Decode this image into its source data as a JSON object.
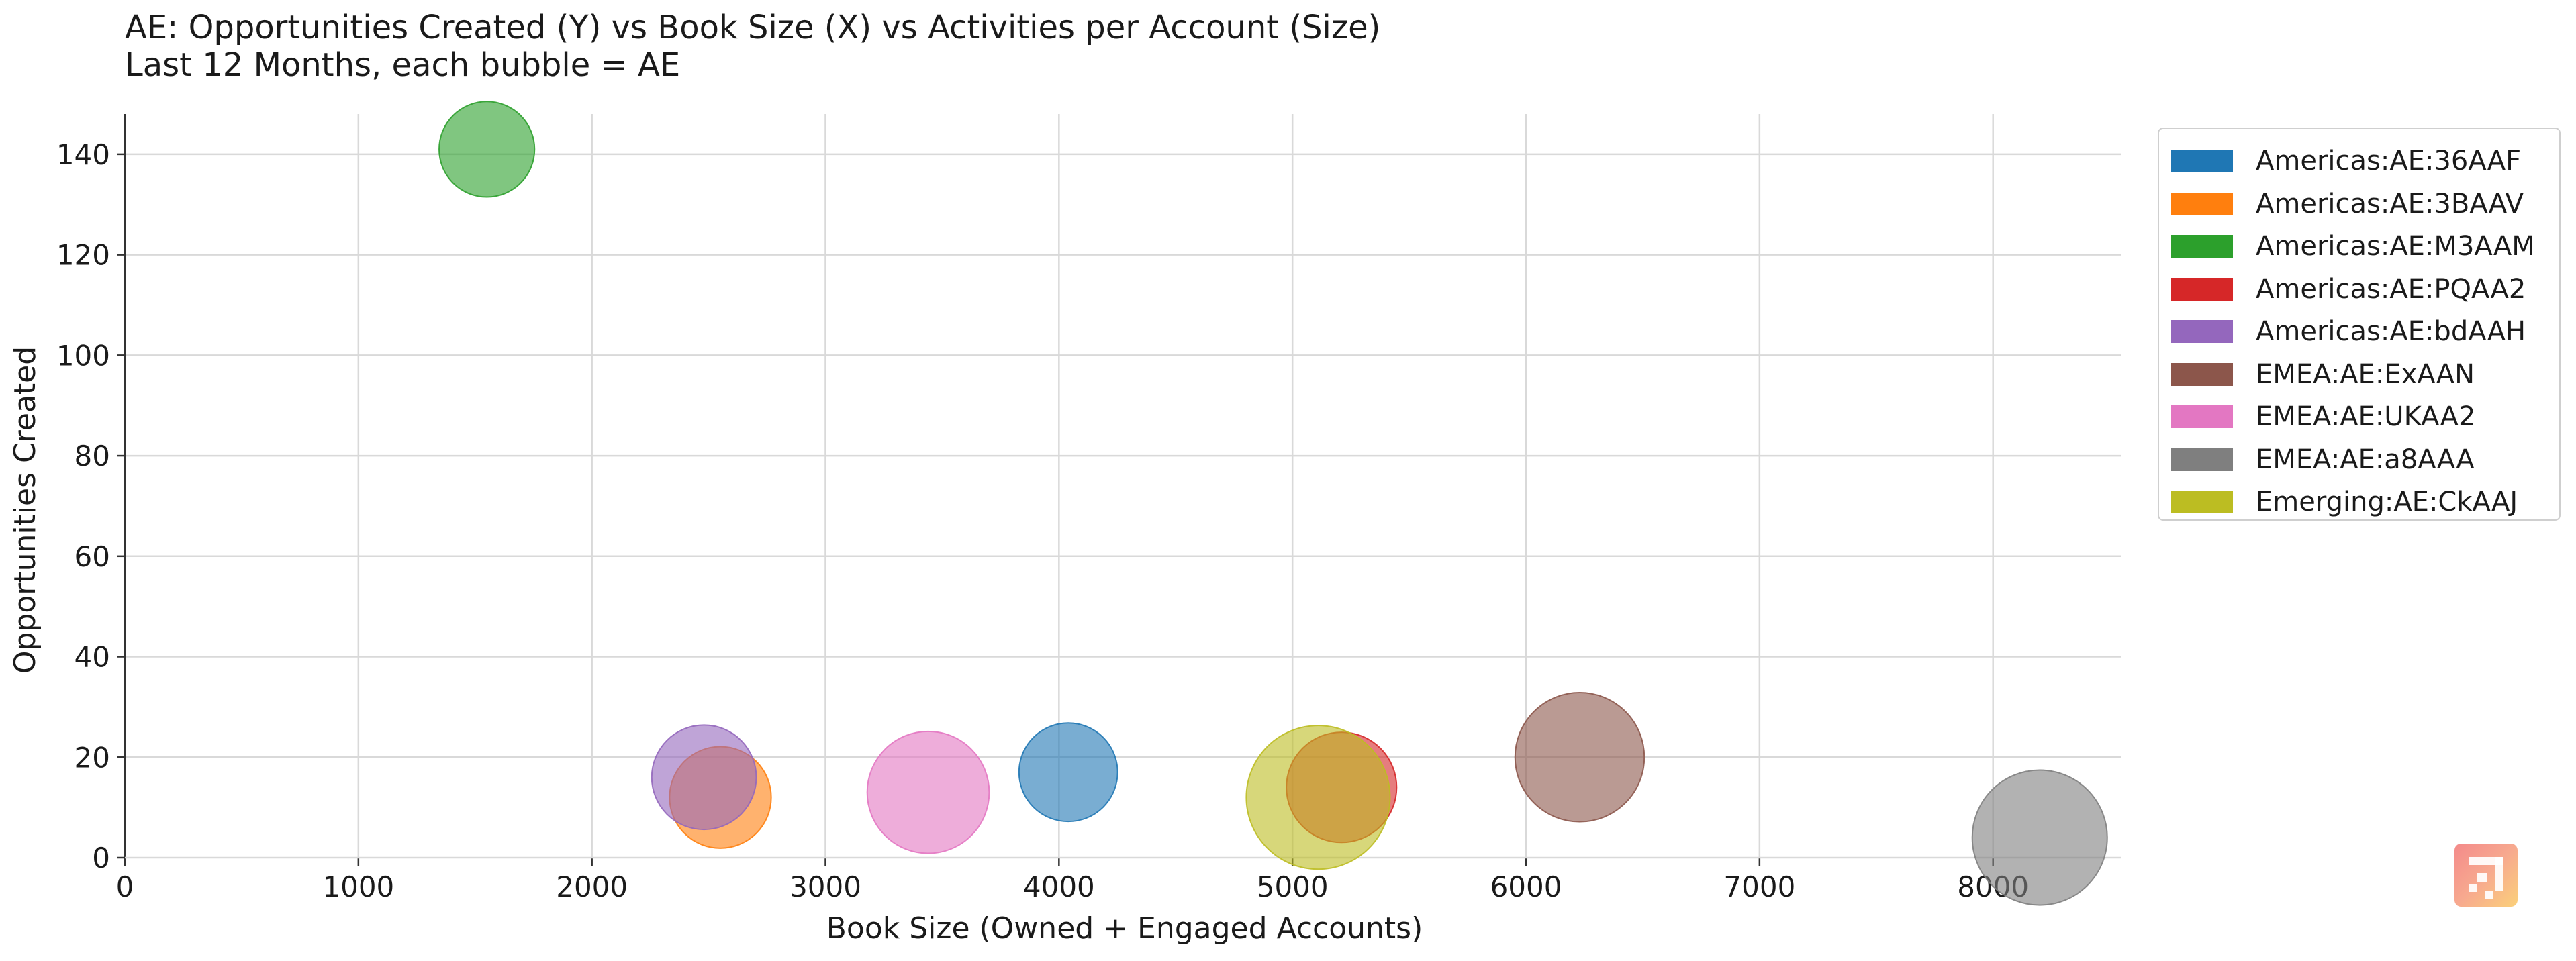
{
  "chart_data": {
    "type": "scatter",
    "title": "AE: Opportunities Created (Y) vs Book Size (X) vs Activities per Account (Size)",
    "subtitle": "Last 12 Months, each bubble = AE",
    "xlabel": "Book Size (Owned + Engaged Accounts)",
    "ylabel": "Opportunities Created",
    "xlim": [
      0,
      8550
    ],
    "ylim": [
      0,
      148
    ],
    "xticks": [
      0,
      1000,
      2000,
      3000,
      4000,
      5000,
      6000,
      7000,
      8000
    ],
    "yticks": [
      0,
      20,
      40,
      60,
      80,
      100,
      120,
      140
    ],
    "grid": true,
    "legend_position": "outside-right",
    "series": [
      {
        "name": "Americas:AE:36AAF",
        "color": "#1f77b4",
        "x": 4040,
        "y": 17,
        "size": 1.6
      },
      {
        "name": "Americas:AE:3BAAV",
        "color": "#ff7f0e",
        "x": 2550,
        "y": 12,
        "size": 1.7
      },
      {
        "name": "Americas:AE:M3AAM",
        "color": "#2ca02c",
        "x": 1550,
        "y": 141,
        "size": 1.5
      },
      {
        "name": "Americas:AE:PQAA2",
        "color": "#d62728",
        "x": 5210,
        "y": 14,
        "size": 2.0
      },
      {
        "name": "Americas:AE:bdAAH",
        "color": "#9467bd",
        "x": 2480,
        "y": 16,
        "size": 1.8
      },
      {
        "name": "EMEA:AE:ExAAN",
        "color": "#8c564b",
        "x": 6230,
        "y": 20,
        "size": 2.75
      },
      {
        "name": "EMEA:AE:UKAA2",
        "color": "#e377c2",
        "x": 3440,
        "y": 13,
        "size": 2.45
      },
      {
        "name": "EMEA:AE:a8AAA",
        "color": "#7f7f7f",
        "x": 8200,
        "y": 4,
        "size": 3.0
      },
      {
        "name": "Emerging:AE:CkAAJ",
        "color": "#bcbd22",
        "x": 5110,
        "y": 12,
        "size": 3.4
      }
    ]
  },
  "logo": {
    "name": "brand-logo"
  }
}
